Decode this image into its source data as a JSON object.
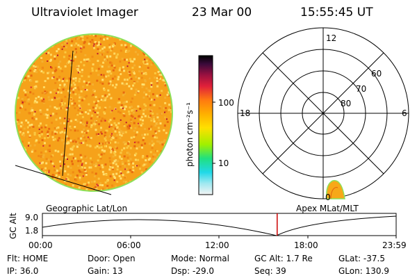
{
  "header": {
    "title": "Ultraviolet Imager",
    "date": "23 Mar 00",
    "time": "15:55:45 UT"
  },
  "colorbar": {
    "label": "photon cm⁻²s⁻¹",
    "ticks": [
      "100",
      "10"
    ]
  },
  "polar": {
    "lat_labels": [
      "80",
      "70",
      "60"
    ],
    "mlt_labels": {
      "top": "12",
      "left": "18",
      "right": "6",
      "bottom": "0"
    }
  },
  "timeline": {
    "ylabel": "GC Alt",
    "left_label": "Geographic Lat/Lon",
    "right_label": "Apex MLat/MLT",
    "y_ticks": [
      "9.0",
      "1.8"
    ],
    "x_ticks": [
      "00:00",
      "06:00",
      "12:00",
      "18:00",
      "23:59"
    ],
    "current_time_hours": 15.93
  },
  "status": {
    "row1": [
      {
        "key": "Flt:",
        "val": "HOME"
      },
      {
        "key": "Door:",
        "val": "Open"
      },
      {
        "key": "Mode:",
        "val": "Normal"
      },
      {
        "key": "GC Alt:",
        "val": "1.7 Re"
      },
      {
        "key": "GLat:",
        "val": "-37.5"
      }
    ],
    "row2": [
      {
        "key": "IP:",
        "val": "36.0"
      },
      {
        "key": "Gain:",
        "val": "13"
      },
      {
        "key": "Dsp:",
        "val": "-29.0"
      },
      {
        "key": "Seq:",
        "val": "39"
      },
      {
        "key": "GLon:",
        "val": "130.9"
      }
    ]
  },
  "colors": {
    "disk_base": "#f6a21a",
    "disk_edge": "#8ee05a",
    "marker": "#cc0000"
  }
}
